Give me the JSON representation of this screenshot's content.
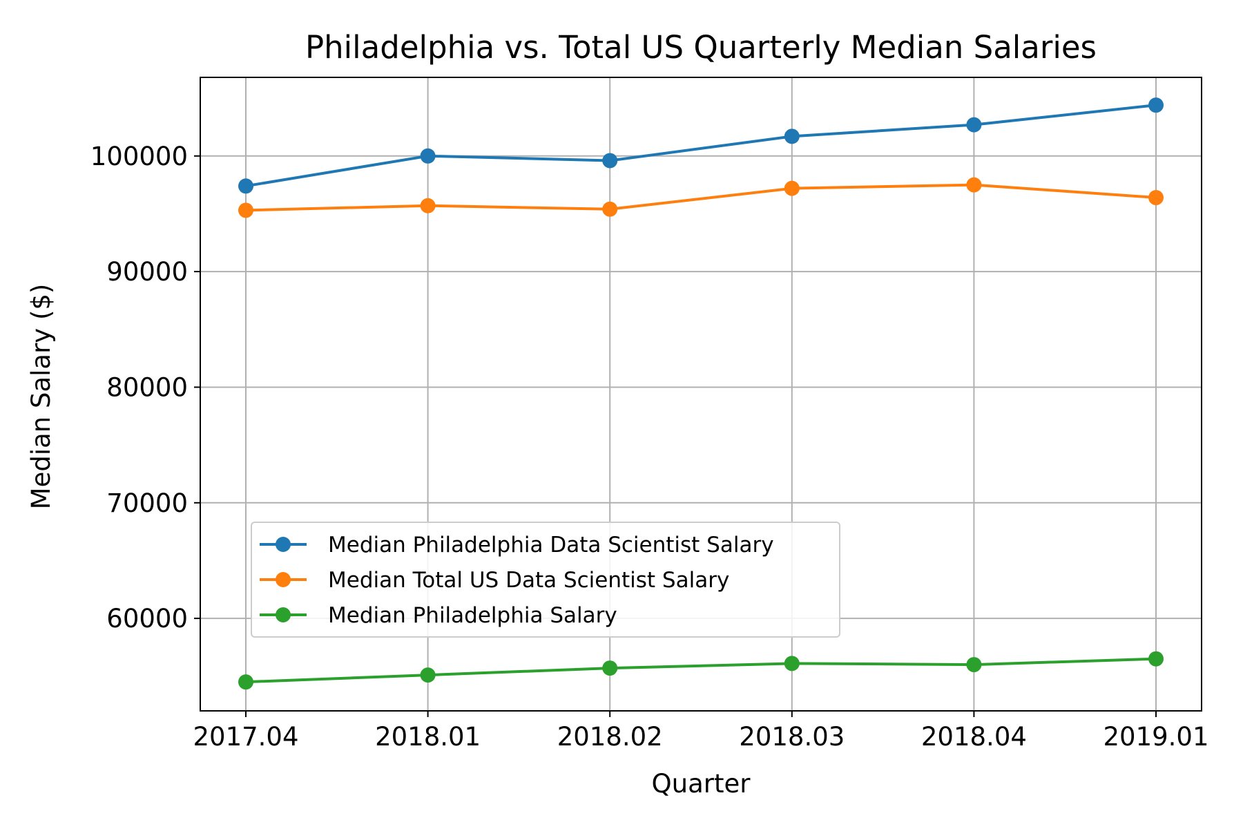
{
  "chart_data": {
    "type": "line",
    "title": "Philadelphia vs. Total US Quarterly Median Salaries",
    "xlabel": "Quarter",
    "ylabel": "Median Salary ($)",
    "categories": [
      "2017.04",
      "2018.01",
      "2018.02",
      "2018.03",
      "2018.04",
      "2019.01"
    ],
    "ylim": [
      52000,
      106800
    ],
    "yticks": [
      60000,
      70000,
      80000,
      90000,
      100000
    ],
    "grid": true,
    "legend_position": "lower-left",
    "series": [
      {
        "name": "Median Philadelphia Data Scientist Salary",
        "color": "#1f77b4",
        "values": [
          97400,
          100000,
          99600,
          101700,
          102700,
          104400
        ]
      },
      {
        "name": "Median Total US Data Scientist Salary",
        "color": "#ff7f0e",
        "values": [
          95300,
          95700,
          95400,
          97200,
          97500,
          96400
        ]
      },
      {
        "name": "Median Philadelphia Salary",
        "color": "#2ca02c",
        "values": [
          54500,
          55100,
          55700,
          56100,
          56000,
          56500
        ]
      }
    ]
  }
}
